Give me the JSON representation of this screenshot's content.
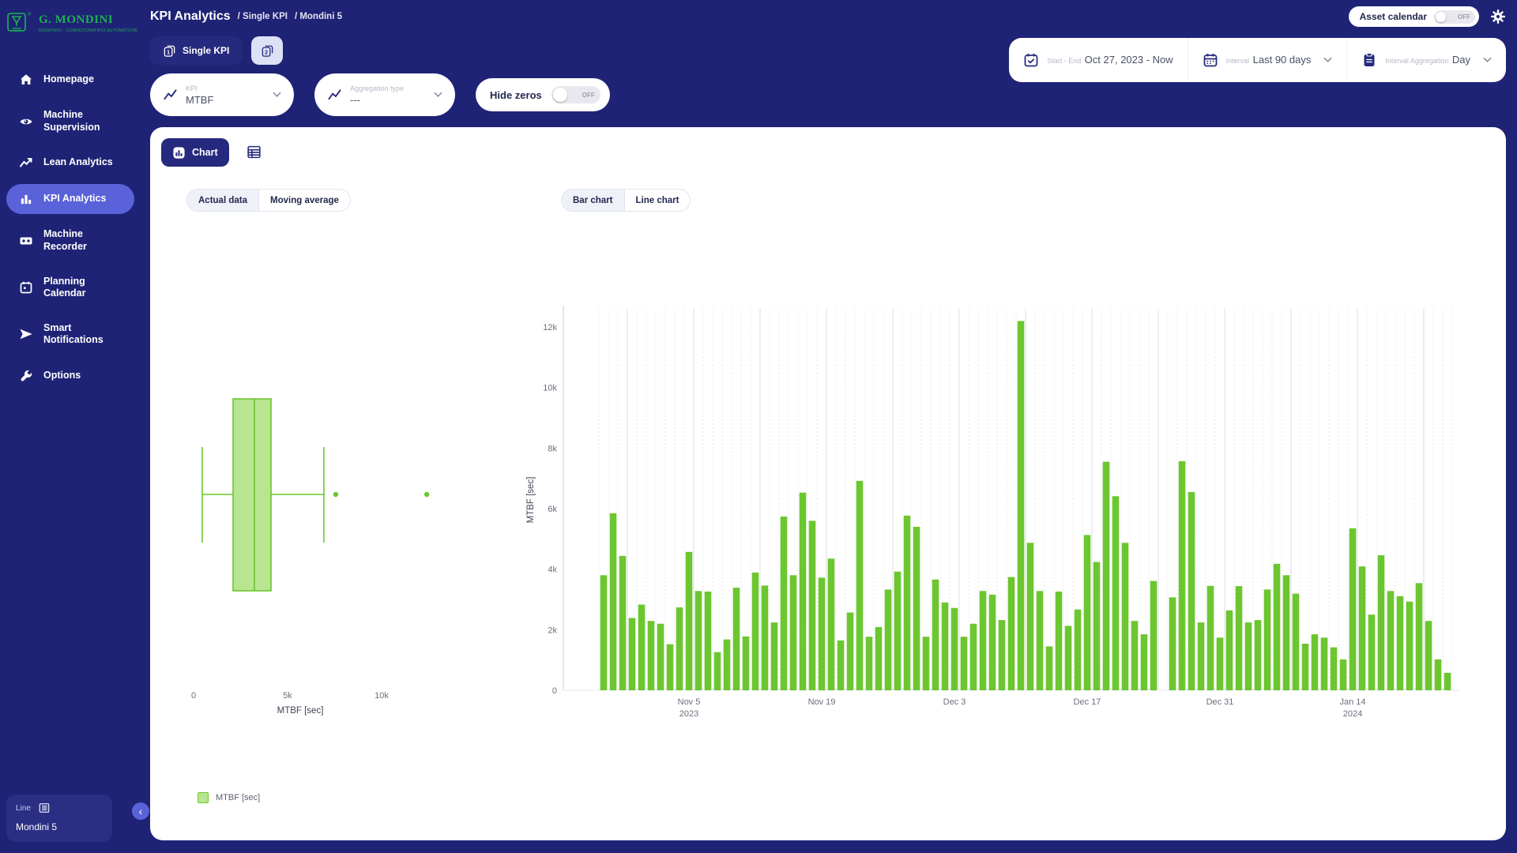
{
  "colors": {
    "navy": "#1f2376",
    "active_item": "#5a62d9",
    "logo_green": "#1db054",
    "bar_green": "#6cc62f",
    "box_fill": "#b7e590",
    "tick_text": "#6b6f80",
    "axis_label": "#3d4257",
    "grid_dashed": "#e7e8ed",
    "grid_solid": "#dbdce2",
    "axis_line": "#d7d9e0"
  },
  "sidebar": {
    "logo": {
      "title": "G. MONDINI",
      "subtitle": "DOSATRICI - CONFEZIONATRICI AUTOMATICHE"
    },
    "items": [
      {
        "label": "Homepage",
        "icon": "home-icon",
        "active": false
      },
      {
        "label": "Machine Supervision",
        "icon": "eye-icon",
        "active": false
      },
      {
        "label": "Lean Analytics",
        "icon": "trend-icon",
        "active": false
      },
      {
        "label": "KPI Analytics",
        "icon": "bar-chart-icon",
        "active": true
      },
      {
        "label": "Machine Recorder",
        "icon": "recorder-icon",
        "active": false
      },
      {
        "label": "Planning Calendar",
        "icon": "calendar-icon",
        "active": false
      },
      {
        "label": "Smart Notifications",
        "icon": "send-icon",
        "active": false
      },
      {
        "label": "Options",
        "icon": "wrench-icon",
        "active": false
      }
    ],
    "footer": {
      "line_label": "Line",
      "machine": "Mondini 5"
    }
  },
  "topbar": {
    "crumbs": {
      "title": "KPI Analytics",
      "c1": "/ Single KPI",
      "c2": "/ Mondini 5"
    },
    "asset_calendar": {
      "label": "Asset calendar",
      "state": "OFF"
    }
  },
  "filters": {
    "tab_single_kpi": "Single KPI",
    "kpi": {
      "label": "KPI",
      "value": "MTBF"
    },
    "aggregation": {
      "label": "Aggregation type",
      "value": "---"
    },
    "hide_zeros": {
      "label": "Hide zeros",
      "state": "OFF"
    },
    "start_end": {
      "label": "Start - End",
      "value": "Oct 27, 2023 - Now"
    },
    "interval": {
      "label": "Interval",
      "value": "Last 90 days"
    },
    "interval_aggregation": {
      "label": "Interval Aggregation",
      "value": "Day"
    }
  },
  "content": {
    "chart_tab": "Chart",
    "actual_data": "Actual data",
    "moving_average": "Moving average",
    "bar_chart_btn": "Bar chart",
    "line_chart_btn": "Line chart",
    "legend_label": "MTBF [sec]"
  },
  "chart_data": [
    {
      "type": "box",
      "orientation": "horizontal",
      "xlabel": "MTBF [sec]",
      "xlim": [
        0,
        13200
      ],
      "xticks": [
        {
          "v": 0,
          "label": "0"
        },
        {
          "v": 5000,
          "label": "5k"
        },
        {
          "v": 10000,
          "label": "10k"
        }
      ],
      "stats": {
        "min": 460,
        "q1": 2100,
        "median": 3230,
        "q3": 4120,
        "max": 6930,
        "outliers": [
          7560,
          12400
        ]
      }
    },
    {
      "type": "bar",
      "ylabel": "MTBF [sec]",
      "ylim": [
        0,
        12900
      ],
      "x_start": "Oct 27, 2023",
      "x_end": "Jan 24, 2024",
      "interval": "day",
      "series": [
        {
          "name": "MTBF [sec]",
          "values": [
            3800,
            5850,
            4440,
            2390,
            2830,
            2290,
            2200,
            1520,
            2740,
            4570,
            3280,
            3260,
            1260,
            1680,
            3390,
            1780,
            3890,
            3460,
            2240,
            5740,
            3800,
            6530,
            5600,
            3720,
            4350,
            1650,
            2570,
            6920,
            1770,
            2090,
            3330,
            3920,
            5770,
            5400,
            1770,
            3660,
            2900,
            2720,
            1770,
            2200,
            3280,
            3160,
            2320,
            3740,
            12200,
            4870,
            3280,
            1450,
            3260,
            2130,
            2670,
            5130,
            4240,
            7550,
            6410,
            4870,
            2290,
            1850,
            3610,
            0,
            3070,
            7570,
            6550,
            2240,
            3450,
            1740,
            2640,
            3440,
            2240,
            2320,
            3330,
            4180,
            3800,
            3190,
            1540,
            1850,
            1740,
            1420,
            1020,
            5350,
            4090,
            2500,
            4460,
            3280,
            3110,
            2930,
            3540,
            2290,
            1020,
            580
          ]
        }
      ],
      "yticks": [
        {
          "v": 0,
          "label": "0"
        },
        {
          "v": 2000,
          "label": "2k"
        },
        {
          "v": 4000,
          "label": "4k"
        },
        {
          "v": 6000,
          "label": "6k"
        },
        {
          "v": 8000,
          "label": "8k"
        },
        {
          "v": 10000,
          "label": "10k"
        },
        {
          "v": 12000,
          "label": "12k"
        }
      ],
      "xticks": [
        {
          "index": 9,
          "label": "Nov 5",
          "sub": "2023"
        },
        {
          "index": 23,
          "label": "Nov 19"
        },
        {
          "index": 37,
          "label": "Dec 3"
        },
        {
          "index": 51,
          "label": "Dec 17"
        },
        {
          "index": 65,
          "label": "Dec 31"
        },
        {
          "index": 79,
          "label": "Jan 14",
          "sub": "2024"
        }
      ]
    }
  ]
}
